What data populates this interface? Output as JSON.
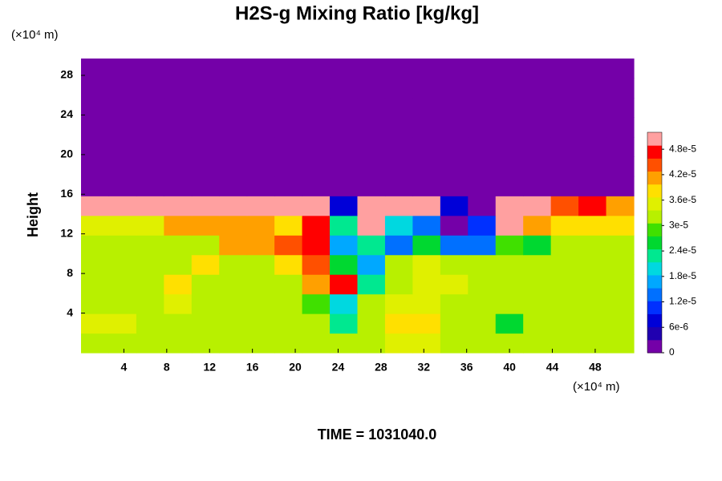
{
  "chart_data": {
    "type": "heatmap",
    "title": "H2S-g Mixing Ratio [kg/kg]",
    "y_label": "Height",
    "y_unit": "(×10⁴ m)",
    "x_unit": "(×10⁴ m)",
    "footer": "TIME = 1031040.0",
    "xlim": [
      0,
      51.6
    ],
    "ylim": [
      0,
      29.7
    ],
    "xticks": [
      4,
      8,
      12,
      16,
      20,
      24,
      28,
      32,
      36,
      40,
      44,
      48
    ],
    "yticks": [
      4,
      8,
      12,
      16,
      20,
      24,
      28
    ],
    "clim": [
      0,
      5.2e-05
    ],
    "cticks": [
      0,
      {
        "value": 6e-06,
        "label": "6e-6"
      },
      {
        "value": 1.2e-05,
        "label": "1.2e-5"
      },
      {
        "value": 1.8e-05,
        "label": "1.8e-5"
      },
      {
        "value": 2.4e-05,
        "label": "2.4e-5"
      },
      {
        "value": 3e-05,
        "label": "3e-5"
      },
      {
        "value": 3.6e-05,
        "label": "3.6e-5"
      },
      {
        "value": 4.2e-05,
        "label": "4.2e-5"
      },
      {
        "value": 4.8e-05,
        "label": "4.8e-5"
      }
    ],
    "colors": [
      "#7400a8",
      "#2000b0",
      "#0000d8",
      "#0030ff",
      "#0070ff",
      "#00a8ff",
      "#00d8e0",
      "#00e890",
      "#00d830",
      "#40e000",
      "#b8f000",
      "#e0f000",
      "#ffe000",
      "#ffa000",
      "#ff5000",
      "#ff0000",
      "#ffa0a0"
    ],
    "values": [
      [
        3.3e-05,
        3.3e-05,
        3.3e-05,
        3.3e-05,
        3.3e-05,
        3.3e-05,
        3.3e-05,
        3.3e-05,
        3.3e-05,
        3.3e-05,
        3.3e-05,
        3.6e-05,
        3.6e-05,
        3.3e-05,
        3.3e-05,
        3.3e-05,
        3.3e-05,
        3.3e-05,
        3.3e-05,
        3.3e-05
      ],
      [
        3.6e-05,
        3.6e-05,
        3.3e-05,
        3.3e-05,
        3.3e-05,
        3.3e-05,
        3.3e-05,
        3.3e-05,
        3.3e-05,
        2.4e-05,
        3.3e-05,
        3.9e-05,
        3.9e-05,
        3.3e-05,
        3.3e-05,
        2.7e-05,
        3.3e-05,
        3.3e-05,
        3.3e-05,
        3.3e-05
      ],
      [
        3.3e-05,
        3.3e-05,
        3.3e-05,
        3.6e-05,
        3.3e-05,
        3.3e-05,
        3.3e-05,
        3.3e-05,
        3e-05,
        2.1e-05,
        3.3e-05,
        3.6e-05,
        3.6e-05,
        3.3e-05,
        3.3e-05,
        3.3e-05,
        3.3e-05,
        3.3e-05,
        3.3e-05,
        3.3e-05
      ],
      [
        3.3e-05,
        3.3e-05,
        3.3e-05,
        3.9e-05,
        3.3e-05,
        3.3e-05,
        3.3e-05,
        3.3e-05,
        4.2e-05,
        4.8e-05,
        2.4e-05,
        3.3e-05,
        3.6e-05,
        3.6e-05,
        3.3e-05,
        3.3e-05,
        3.3e-05,
        3.3e-05,
        3.3e-05,
        3.3e-05
      ],
      [
        3.3e-05,
        3.3e-05,
        3.3e-05,
        3.3e-05,
        3.9e-05,
        3.3e-05,
        3.3e-05,
        3.9e-05,
        4.5e-05,
        2.7e-05,
        1.8e-05,
        3.3e-05,
        3.6e-05,
        3.3e-05,
        3.3e-05,
        3.3e-05,
        3.3e-05,
        3.3e-05,
        3.3e-05,
        3.3e-05
      ],
      [
        3.3e-05,
        3.3e-05,
        3.3e-05,
        3.3e-05,
        3.3e-05,
        4.2e-05,
        4.2e-05,
        4.5e-05,
        4.8e-05,
        1.8e-05,
        2.4e-05,
        1.5e-05,
        2.7e-05,
        1.5e-05,
        1.5e-05,
        3e-05,
        2.7e-05,
        3.3e-05,
        3.3e-05,
        3.3e-05
      ],
      [
        3.6e-05,
        3.6e-05,
        3.6e-05,
        4.2e-05,
        4.2e-05,
        4.2e-05,
        4.2e-05,
        3.9e-05,
        4.8e-05,
        2.4e-05,
        5.2e-05,
        2.1e-05,
        1.5e-05,
        3e-06,
        1.2e-05,
        5.2e-05,
        4.2e-05,
        3.9e-05,
        3.9e-05,
        3.9e-05
      ],
      [
        5.2e-05,
        5.2e-05,
        5.2e-05,
        5.2e-05,
        5.2e-05,
        5.2e-05,
        5.2e-05,
        5.2e-05,
        5.2e-05,
        9e-06,
        5.2e-05,
        5.2e-05,
        5.2e-05,
        9e-06,
        3e-06,
        5.2e-05,
        5.2e-05,
        4.5e-05,
        4.8e-05,
        4.2e-05
      ],
      [
        0,
        0,
        0,
        0,
        0,
        0,
        0,
        0,
        0,
        0,
        0,
        0,
        0,
        0,
        0,
        0,
        0,
        0,
        0,
        0
      ],
      [
        0,
        0,
        0,
        0,
        0,
        0,
        0,
        0,
        0,
        0,
        0,
        0,
        0,
        0,
        0,
        0,
        0,
        0,
        0,
        0
      ],
      [
        0,
        0,
        0,
        0,
        0,
        0,
        0,
        0,
        0,
        0,
        0,
        0,
        0,
        0,
        0,
        0,
        0,
        0,
        0,
        0
      ],
      [
        0,
        0,
        0,
        0,
        0,
        0,
        0,
        0,
        0,
        0,
        0,
        0,
        0,
        0,
        0,
        0,
        0,
        0,
        0,
        0
      ],
      [
        0,
        0,
        0,
        0,
        0,
        0,
        0,
        0,
        0,
        0,
        0,
        0,
        0,
        0,
        0,
        0,
        0,
        0,
        0,
        0
      ],
      [
        0,
        0,
        0,
        0,
        0,
        0,
        0,
        0,
        0,
        0,
        0,
        0,
        0,
        0,
        0,
        0,
        0,
        0,
        0,
        0
      ],
      [
        0,
        0,
        0,
        0,
        0,
        0,
        0,
        0,
        0,
        0,
        0,
        0,
        0,
        0,
        0,
        0,
        0,
        0,
        0,
        0
      ]
    ]
  }
}
